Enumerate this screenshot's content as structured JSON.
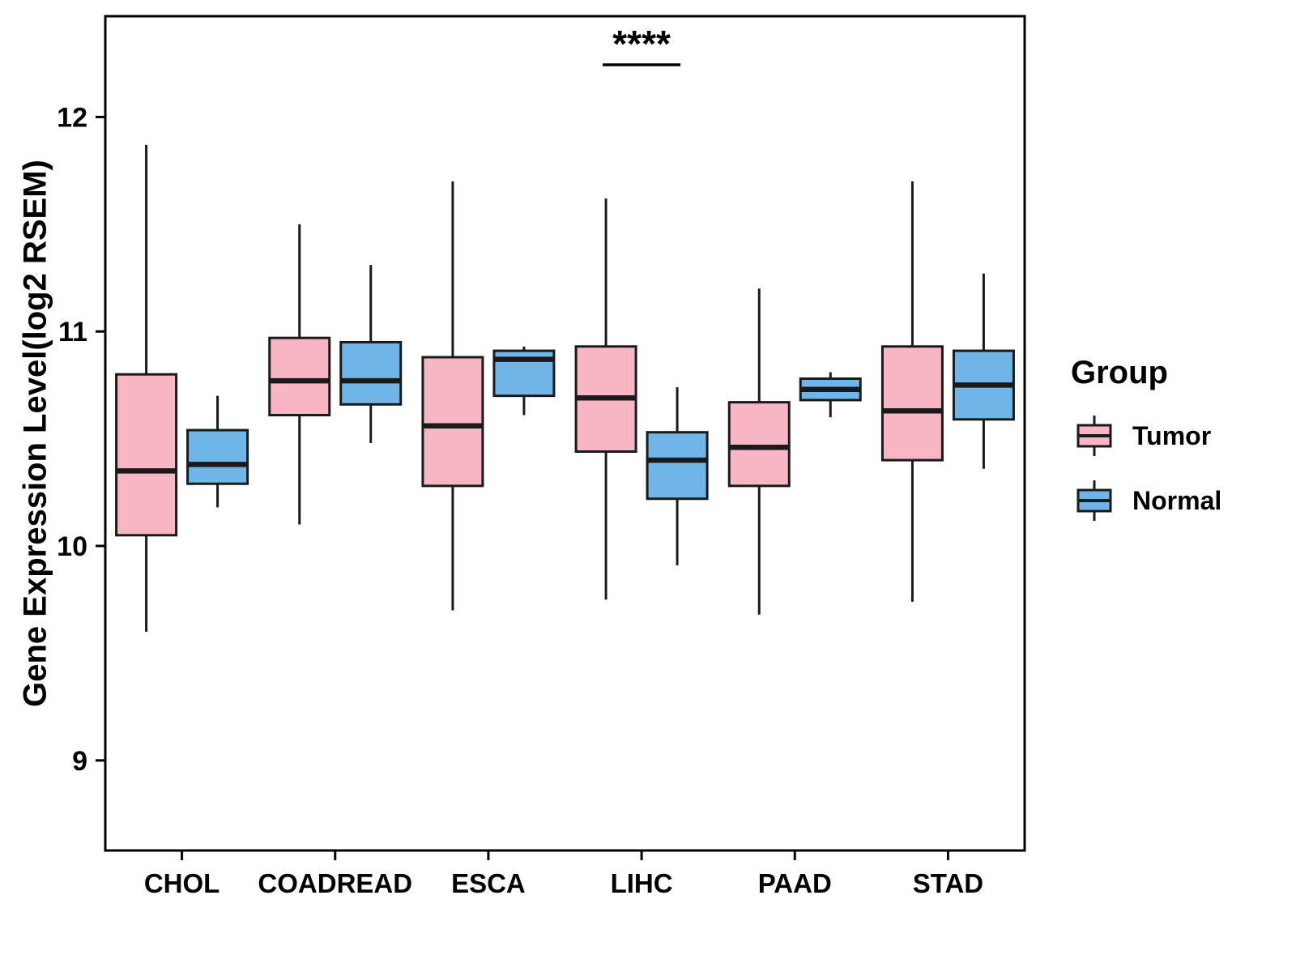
{
  "chart_data": {
    "type": "boxplot",
    "title": "",
    "xlabel": "",
    "ylabel": "Gene Expression Level(log2 RSEM)",
    "ylim": [
      8.58,
      12.47
    ],
    "yticks": [
      9,
      10,
      11,
      12
    ],
    "grid": false,
    "categories": [
      "CHOL",
      "COADREAD",
      "ESCA",
      "LIHC",
      "PAAD",
      "STAD"
    ],
    "series": [
      {
        "name": "Tumor",
        "color": "#F8B5C4",
        "boxes": [
          {
            "min": 9.6,
            "q1": 10.05,
            "median": 10.35,
            "q3": 10.8,
            "max": 11.87
          },
          {
            "min": 10.1,
            "q1": 10.61,
            "median": 10.77,
            "q3": 10.97,
            "max": 11.5
          },
          {
            "min": 9.7,
            "q1": 10.28,
            "median": 10.56,
            "q3": 10.88,
            "max": 11.7
          },
          {
            "min": 9.75,
            "q1": 10.44,
            "median": 10.69,
            "q3": 10.93,
            "max": 11.62
          },
          {
            "min": 9.68,
            "q1": 10.28,
            "median": 10.46,
            "q3": 10.67,
            "max": 11.2
          },
          {
            "min": 9.74,
            "q1": 10.4,
            "median": 10.63,
            "q3": 10.93,
            "max": 11.7
          }
        ]
      },
      {
        "name": "Normal",
        "color": "#6FB5E8",
        "boxes": [
          {
            "min": 10.18,
            "q1": 10.29,
            "median": 10.38,
            "q3": 10.54,
            "max": 10.7
          },
          {
            "min": 10.48,
            "q1": 10.66,
            "median": 10.77,
            "q3": 10.95,
            "max": 11.31
          },
          {
            "min": 10.61,
            "q1": 10.7,
            "median": 10.87,
            "q3": 10.91,
            "max": 10.93
          },
          {
            "min": 9.91,
            "q1": 10.22,
            "median": 10.4,
            "q3": 10.53,
            "max": 10.74
          },
          {
            "min": 10.6,
            "q1": 10.68,
            "median": 10.73,
            "q3": 10.78,
            "max": 10.81
          },
          {
            "min": 10.36,
            "q1": 10.59,
            "median": 10.75,
            "q3": 10.91,
            "max": 11.27
          }
        ]
      }
    ],
    "annotation": {
      "label": "****",
      "category": "LIHC"
    },
    "legend": {
      "title": "Group",
      "entries": [
        "Tumor",
        "Normal"
      ],
      "position": "right"
    },
    "style": {
      "box_stroke": "#1A1A1A",
      "axis_color": "#000000",
      "text_color": "#000000"
    }
  }
}
